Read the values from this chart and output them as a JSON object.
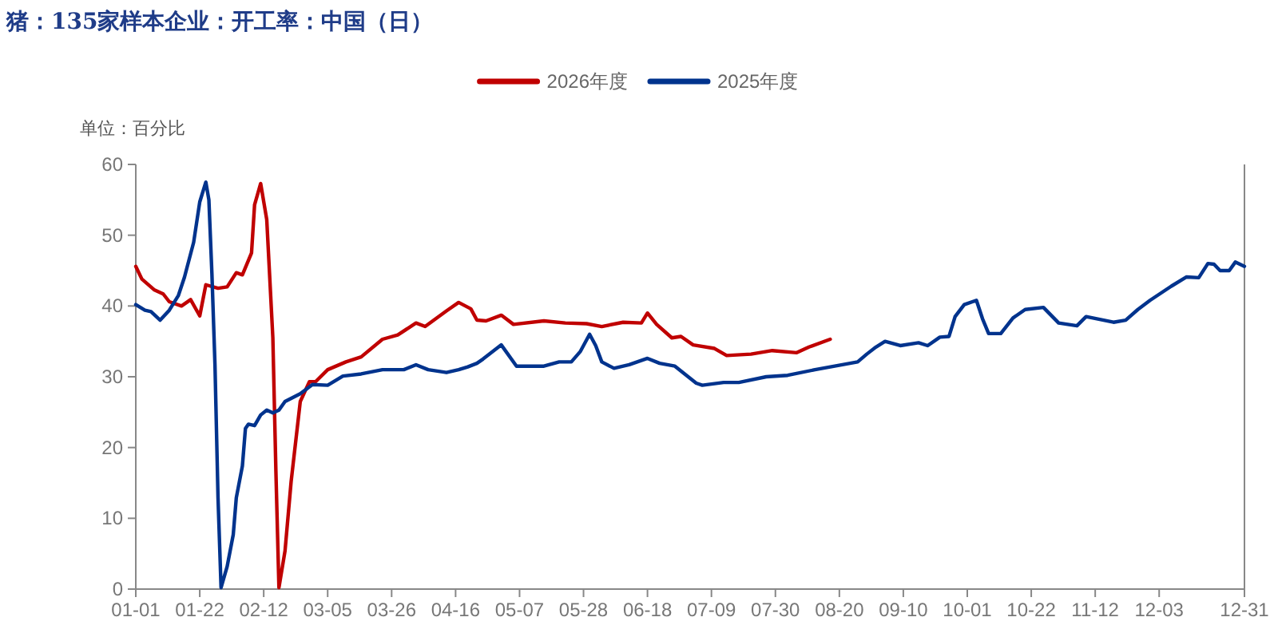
{
  "chart_data": {
    "type": "line",
    "title": "猪：135家样本企业：开工率：中国（日）",
    "ylabel": "单位：百分比",
    "legend": "top",
    "xlim": [
      "--01-01",
      "--12-31"
    ],
    "xticks": [
      {
        "value": "--01-01",
        "label": "01-01"
      },
      {
        "value": "--01-22",
        "label": "01-22"
      },
      {
        "value": "--02-12",
        "label": "02-12"
      },
      {
        "value": "--03-05",
        "label": "03-05"
      },
      {
        "value": "--03-26",
        "label": "03-26"
      },
      {
        "value": "--04-16",
        "label": "04-16"
      },
      {
        "value": "--05-07",
        "label": "05-07"
      },
      {
        "value": "--05-28",
        "label": "05-28"
      },
      {
        "value": "--06-18",
        "label": "06-18"
      },
      {
        "value": "--07-09",
        "label": "07-09"
      },
      {
        "value": "--07-30",
        "label": "07-30"
      },
      {
        "value": "--08-20",
        "label": "08-20"
      },
      {
        "value": "--09-10",
        "label": "09-10"
      },
      {
        "value": "--10-01",
        "label": "10-01"
      },
      {
        "value": "--10-22",
        "label": "10-22"
      },
      {
        "value": "--11-12",
        "label": "11-12"
      },
      {
        "value": "--12-03",
        "label": "12-03"
      },
      {
        "value": "--12-31",
        "label": "12-31"
      }
    ],
    "ylim": [
      0,
      60
    ],
    "yticks": [
      0,
      10,
      20,
      30,
      40,
      50,
      60
    ],
    "grid": false,
    "series": [
      {
        "name": "2026年度",
        "color": "#c00000",
        "x": [
          "--01-01",
          "--01-03",
          "--01-07",
          "--01-10",
          "--01-12",
          "--01-16",
          "--01-19",
          "--01-22",
          "--01-24",
          "--01-28",
          "--01-31",
          "--02-03",
          "--02-05",
          "--02-08",
          "--02-09",
          "--02-11",
          "--02-13",
          "--02-15",
          "--02-16",
          "--02-17",
          "--02-19",
          "--02-21",
          "--02-24",
          "--02-27",
          "--03-01",
          "--03-05",
          "--03-11",
          "--03-16",
          "--03-23",
          "--03-28",
          "--04-03",
          "--04-06",
          "--04-13",
          "--04-17",
          "--04-21",
          "--04-23",
          "--04-26",
          "--05-01",
          "--05-05",
          "--05-15",
          "--05-22",
          "--05-29",
          "--06-03",
          "--06-10",
          "--06-16",
          "--06-18",
          "--06-21",
          "--06-26",
          "--06-29",
          "--07-03",
          "--07-10",
          "--07-14",
          "--07-22",
          "--07-29",
          "--08-06",
          "--08-10",
          "--08-17"
        ],
        "values": [
          45.6,
          43.8,
          42.3,
          41.7,
          40.6,
          40.0,
          40.9,
          38.6,
          43.0,
          42.5,
          42.7,
          44.7,
          44.4,
          47.5,
          54.3,
          57.3,
          52.2,
          35.5,
          16.7,
          0.2,
          5.4,
          15.2,
          26.5,
          29.3,
          29.3,
          31.0,
          32.1,
          32.8,
          35.3,
          35.9,
          37.6,
          37.1,
          39.3,
          40.5,
          39.6,
          38.0,
          37.9,
          38.7,
          37.4,
          37.9,
          37.6,
          37.5,
          37.1,
          37.7,
          37.6,
          39.0,
          37.4,
          35.5,
          35.7,
          34.5,
          34.0,
          33.0,
          33.2,
          33.7,
          33.4,
          34.2,
          35.3
        ]
      },
      {
        "name": "2025年度",
        "color": "#00338d",
        "x": [
          "--01-01",
          "--01-04",
          "--01-06",
          "--01-09",
          "--01-12",
          "--01-15",
          "--01-17",
          "--01-20",
          "--01-22",
          "--01-24",
          "--01-25",
          "--01-26",
          "--01-27",
          "--01-28",
          "--01-29",
          "--01-31",
          "--02-02",
          "--02-03",
          "--02-05",
          "--02-06",
          "--02-07",
          "--02-09",
          "--02-11",
          "--02-13",
          "--02-15",
          "--02-17",
          "--02-19",
          "--02-24",
          "--02-28",
          "--03-05",
          "--03-10",
          "--03-16",
          "--03-23",
          "--03-30",
          "--04-03",
          "--04-07",
          "--04-13",
          "--04-17",
          "--04-20",
          "--04-23",
          "--04-25",
          "--05-01",
          "--05-06",
          "--05-15",
          "--05-20",
          "--05-24",
          "--05-27",
          "--05-30",
          "--06-01",
          "--06-03",
          "--06-07",
          "--06-12",
          "--06-18",
          "--06-22",
          "--06-27",
          "--07-04",
          "--07-06",
          "--07-13",
          "--07-18",
          "--07-27",
          "--08-03",
          "--08-12",
          "--08-21",
          "--08-26",
          "--08-29",
          "--09-01",
          "--09-04",
          "--09-09",
          "--09-15",
          "--09-18",
          "--09-22",
          "--09-25",
          "--09-27",
          "--09-30",
          "--10-04",
          "--10-06",
          "--10-08",
          "--10-12",
          "--10-16",
          "--10-20",
          "--10-26",
          "--10-31",
          "--11-06",
          "--11-09",
          "--11-18",
          "--11-22",
          "--11-26",
          "--11-30",
          "--12-07",
          "--12-12",
          "--12-16",
          "--12-19",
          "--12-21",
          "--12-23",
          "--12-26",
          "--12-28",
          "--12-31"
        ],
        "values": [
          40.2,
          39.4,
          39.2,
          38.0,
          39.4,
          41.5,
          44.1,
          49.0,
          54.7,
          57.5,
          55.0,
          44.5,
          31.7,
          12.9,
          0.2,
          3.2,
          7.7,
          12.9,
          17.4,
          22.7,
          23.3,
          23.1,
          24.6,
          25.3,
          24.9,
          25.3,
          26.5,
          27.6,
          28.9,
          28.8,
          30.1,
          30.4,
          31.0,
          31.0,
          31.7,
          31.0,
          30.6,
          31.0,
          31.4,
          31.9,
          32.5,
          34.5,
          31.5,
          31.5,
          32.1,
          32.1,
          33.6,
          36.0,
          34.4,
          32.1,
          31.2,
          31.7,
          32.6,
          31.9,
          31.5,
          29.1,
          28.8,
          29.2,
          29.2,
          30.0,
          30.2,
          31.0,
          31.7,
          32.1,
          33.2,
          34.2,
          35.0,
          34.4,
          34.8,
          34.4,
          35.6,
          35.7,
          38.5,
          40.2,
          40.8,
          38.2,
          36.1,
          36.1,
          38.3,
          39.5,
          39.8,
          37.6,
          37.2,
          38.5,
          37.7,
          38.0,
          39.5,
          40.8,
          42.8,
          44.1,
          44.0,
          46.0,
          45.9,
          45.0,
          45.0,
          46.2,
          45.6
        ]
      }
    ]
  }
}
